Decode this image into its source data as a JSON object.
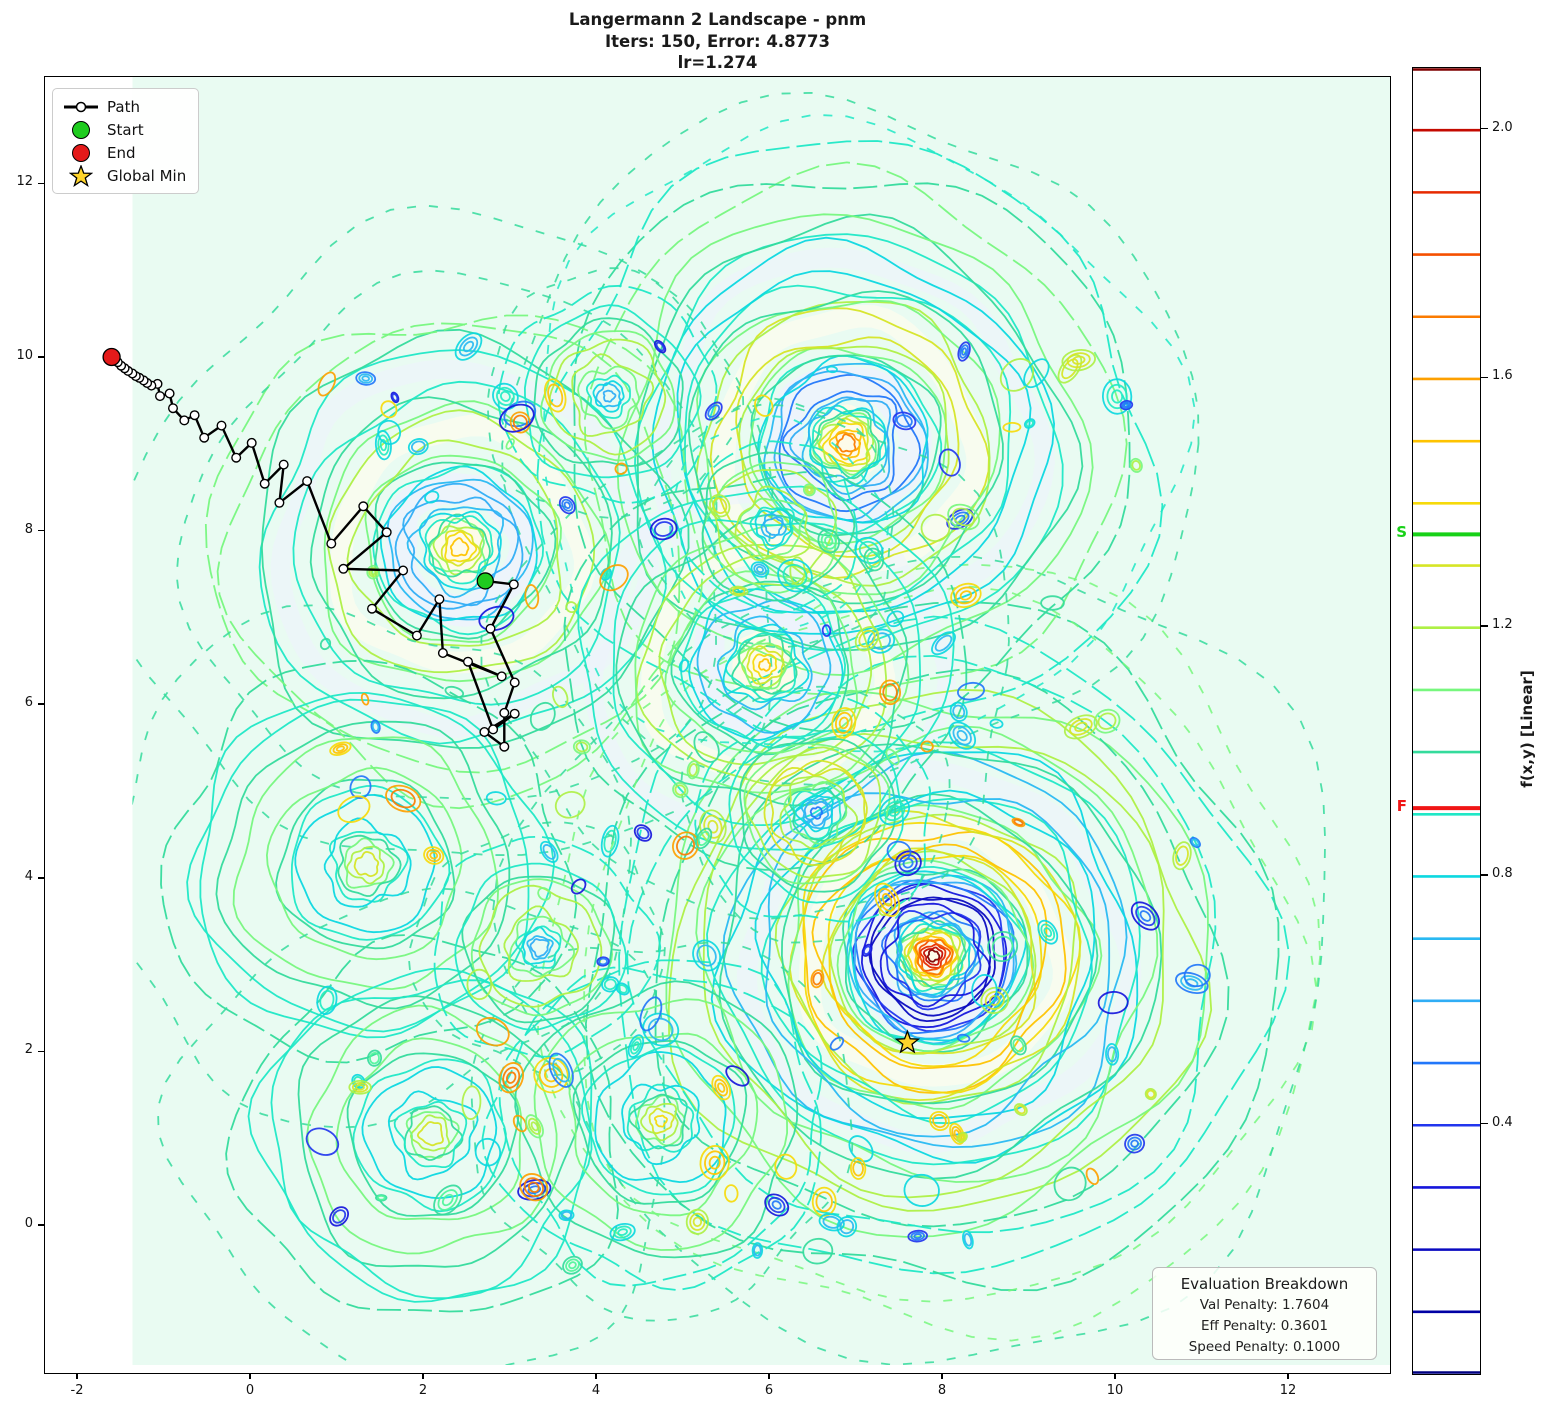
{
  "title": {
    "line1": "Langermann 2 Landscape - pnm",
    "line2": "Iters: 150, Error: 4.8773",
    "line3": "lr=1.274"
  },
  "legend": {
    "items": [
      {
        "label": "Path"
      },
      {
        "label": "Start"
      },
      {
        "label": "End"
      },
      {
        "label": "Global Min"
      }
    ]
  },
  "eval_box": {
    "title": "Evaluation Breakdown",
    "lines": [
      "Val Penalty: 1.7604",
      "Eff Penalty: 0.3601",
      "Speed Penalty: 0.1000"
    ]
  },
  "axes": {
    "xticks": [
      -2,
      0,
      2,
      4,
      6,
      8,
      10,
      12
    ],
    "yticks": [
      0,
      2,
      4,
      6,
      8,
      10,
      12
    ],
    "xlim": [
      -2.37,
      13.18
    ],
    "ylim": [
      -1.71,
      13.23
    ]
  },
  "colorbar": {
    "label": "f(x,y) [Linear]",
    "range": [
      0.0,
      2.1
    ],
    "level_step": 0.1,
    "ticks": [
      {
        "value": 2.0,
        "label": "2.0"
      },
      {
        "value": 1.6,
        "label": "1.6"
      },
      {
        "value": 1.2,
        "label": "1.2"
      },
      {
        "value": 0.8,
        "label": "0.8"
      },
      {
        "value": 0.4,
        "label": "0.4"
      }
    ],
    "levels": [
      {
        "value": 0.0,
        "color": "#000082"
      },
      {
        "value": 0.1,
        "color": "#0000a4"
      },
      {
        "value": 0.2,
        "color": "#0a0ac0"
      },
      {
        "value": 0.3,
        "color": "#1616dc"
      },
      {
        "value": 0.4,
        "color": "#2236ee"
      },
      {
        "value": 0.5,
        "color": "#2277fa"
      },
      {
        "value": 0.6,
        "color": "#30adf5"
      },
      {
        "value": 0.7,
        "color": "#29b9f2"
      },
      {
        "value": 0.8,
        "color": "#0cd8e0"
      },
      {
        "value": 0.9,
        "color": "#1fe8c6"
      },
      {
        "value": 1.0,
        "color": "#34db9c"
      },
      {
        "value": 1.1,
        "color": "#77f77e"
      },
      {
        "value": 1.2,
        "color": "#aef045"
      },
      {
        "value": 1.3,
        "color": "#d6e526"
      },
      {
        "value": 1.4,
        "color": "#f6da0b"
      },
      {
        "value": 1.5,
        "color": "#fec301"
      },
      {
        "value": 1.6,
        "color": "#fda000"
      },
      {
        "value": 1.7,
        "color": "#fb7b00"
      },
      {
        "value": 1.8,
        "color": "#f55000"
      },
      {
        "value": 1.9,
        "color": "#e62a00"
      },
      {
        "value": 2.0,
        "color": "#c40a00"
      },
      {
        "value": 2.1,
        "color": "#7e0000"
      }
    ],
    "start_marker": {
      "label": "S",
      "value": 1.35,
      "color": "#18d118"
    },
    "final_marker": {
      "label": "F",
      "value": 0.91,
      "color": "#f01515"
    }
  },
  "chart_data": {
    "type": "contour",
    "function_name": "Langermann 2",
    "colormap": "jet",
    "iterations": 150,
    "error": 4.8773,
    "learning_rate": 1.274,
    "baseline_value": 1.0,
    "background_color": "#e9fbf2",
    "field_domain_xmin": -1.36,
    "bumps": [
      {
        "x": 7.9,
        "y": 3.1,
        "peak": 2.15,
        "decay": 170,
        "wl": 125,
        "maxr": 430
      },
      {
        "x": 6.9,
        "y": 9.0,
        "peak": 1.78,
        "decay": 160,
        "wl": 125,
        "maxr": 390
      },
      {
        "x": 2.42,
        "y": 7.8,
        "peak": 1.62,
        "decay": 140,
        "wl": 120,
        "maxr": 330
      },
      {
        "x": 5.95,
        "y": 6.45,
        "peak": 1.55,
        "decay": 130,
        "wl": 115,
        "maxr": 300
      },
      {
        "x": 1.35,
        "y": 4.15,
        "peak": 1.42,
        "decay": 120,
        "wl": 115,
        "maxr": 285
      },
      {
        "x": 2.1,
        "y": 1.05,
        "peak": 1.4,
        "decay": 120,
        "wl": 110,
        "maxr": 270
      },
      {
        "x": 4.75,
        "y": 1.2,
        "peak": 1.45,
        "decay": 110,
        "wl": 110,
        "maxr": 230
      },
      {
        "x": 4.15,
        "y": 9.55,
        "peak": 0.55,
        "decay": 80,
        "wl": 100,
        "maxr": 150
      },
      {
        "x": 6.05,
        "y": 8.05,
        "peak": 0.5,
        "decay": 75,
        "wl": 100,
        "maxr": 130
      },
      {
        "x": 6.55,
        "y": 4.75,
        "peak": 0.45,
        "decay": 85,
        "wl": 105,
        "maxr": 150
      },
      {
        "x": 3.35,
        "y": 3.2,
        "peak": 0.5,
        "decay": 80,
        "wl": 100,
        "maxr": 140
      }
    ],
    "start": {
      "x": 2.72,
      "y": 7.42,
      "color": "#1fcc1f",
      "label": "Start"
    },
    "end": {
      "x": -1.6,
      "y": 10.0,
      "color": "#e41a1a",
      "label": "End"
    },
    "global_min": {
      "x": 7.6,
      "y": 2.1,
      "color": "#ffd42a",
      "label": "Global Min"
    },
    "path": {
      "color": "#000000",
      "points": [
        [
          2.72,
          7.42
        ],
        [
          3.05,
          7.38
        ],
        [
          2.78,
          6.87
        ],
        [
          3.06,
          6.25
        ],
        [
          2.94,
          5.9
        ],
        [
          2.94,
          5.51
        ],
        [
          2.71,
          5.68
        ],
        [
          3.06,
          5.89
        ],
        [
          2.81,
          5.71
        ],
        [
          2.52,
          6.49
        ],
        [
          2.91,
          6.32
        ],
        [
          2.23,
          6.59
        ],
        [
          2.19,
          7.21
        ],
        [
          1.93,
          6.79
        ],
        [
          1.41,
          7.1
        ],
        [
          1.77,
          7.54
        ],
        [
          1.08,
          7.56
        ],
        [
          1.58,
          7.98
        ],
        [
          1.31,
          8.28
        ],
        [
          0.94,
          7.85
        ],
        [
          0.66,
          8.57
        ],
        [
          0.34,
          8.32
        ],
        [
          0.39,
          8.76
        ],
        [
          0.17,
          8.54
        ],
        [
          0.02,
          9.01
        ],
        [
          -0.16,
          8.84
        ],
        [
          -0.33,
          9.21
        ],
        [
          -0.53,
          9.07
        ],
        [
          -0.64,
          9.33
        ],
        [
          -0.76,
          9.27
        ],
        [
          -0.89,
          9.41
        ],
        [
          -0.93,
          9.58
        ],
        [
          -1.04,
          9.55
        ],
        [
          -1.07,
          9.69
        ],
        [
          -1.14,
          9.67
        ],
        [
          -1.19,
          9.7
        ],
        [
          -1.23,
          9.73
        ],
        [
          -1.28,
          9.76
        ],
        [
          -1.32,
          9.78
        ],
        [
          -1.36,
          9.81
        ],
        [
          -1.41,
          9.84
        ],
        [
          -1.45,
          9.87
        ],
        [
          -1.49,
          9.9
        ],
        [
          -1.53,
          9.94
        ],
        [
          -1.6,
          10.0
        ]
      ]
    },
    "blob_palette": [
      [
        "#1616dc",
        "#2236ee",
        "#2277fa"
      ],
      [
        "#2236ee",
        "#2277fa"
      ],
      [
        "#2277fa",
        "#29b9f2"
      ],
      [
        "#0cd8e0",
        "#22ebc3"
      ],
      [
        "#0cd8e0",
        "#29b9f2"
      ],
      [
        "#34db9c",
        "#4ef59a"
      ],
      [
        "#77f77e",
        "#aef045"
      ],
      [
        "#aef045",
        "#d6e526"
      ],
      [
        "#f6da0b",
        "#fec301"
      ],
      [
        "#fda000",
        "#fb7b00"
      ]
    ]
  }
}
